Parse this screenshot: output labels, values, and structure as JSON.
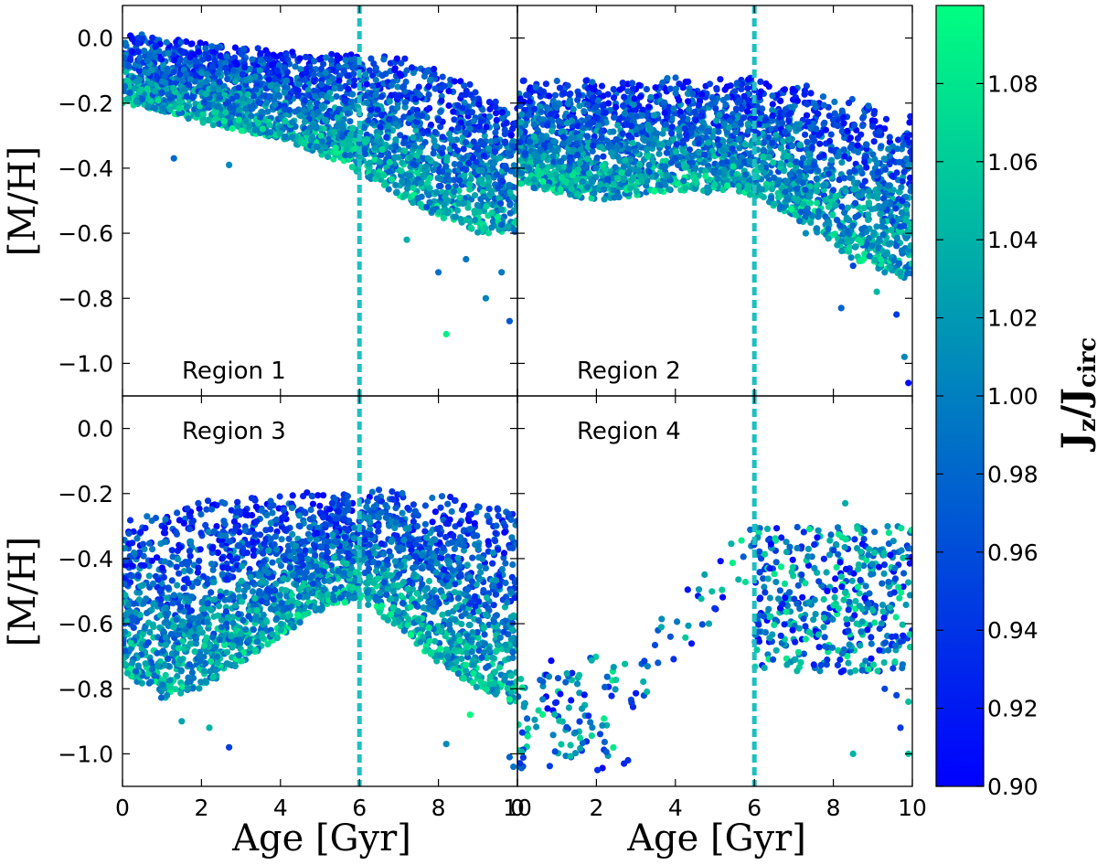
{
  "chart_data": {
    "type": "scatter",
    "layout": "2x2 grid of panels sharing axes",
    "xlabel": "Age [Gyr]",
    "ylabel": "[M/H]",
    "xlim": [
      0,
      10
    ],
    "ylim": [
      -1.1,
      0.1
    ],
    "xticks": [
      "0",
      "2",
      "4",
      "6",
      "8",
      "10"
    ],
    "yticks": [
      "0.0",
      "−0.2",
      "−0.4",
      "−0.6",
      "−0.8",
      "−1.0"
    ],
    "reference_line": {
      "x": 6,
      "style": "dashed",
      "color": "#1fbfbf"
    },
    "colorbar": {
      "label": "J_z/J_circ",
      "label_main": "J",
      "label_sub1": "z",
      "label_slash": "/J",
      "label_sub2": "circ",
      "min": 0.9,
      "max": 1.1,
      "ticks": [
        "0.90",
        "0.92",
        "0.94",
        "0.96",
        "0.98",
        "1.00",
        "1.02",
        "1.04",
        "1.06",
        "1.08"
      ],
      "color_low": "#0000ff",
      "color_high": "#00ff80"
    },
    "panels": [
      {
        "name": "Region 1",
        "description": "dense band; upper envelope ~0.0 at age 0 declining to ~-0.2 at age 10, spread widening with age, sparse tail down to ~-0.9",
        "upper": [
          [
            0,
            0.02
          ],
          [
            2,
            -0.01
          ],
          [
            4,
            -0.04
          ],
          [
            6,
            -0.05
          ],
          [
            7,
            -0.06
          ],
          [
            8,
            -0.08
          ],
          [
            9,
            -0.15
          ],
          [
            10,
            -0.2
          ]
        ],
        "lower": [
          [
            0,
            -0.2
          ],
          [
            2,
            -0.26
          ],
          [
            4,
            -0.31
          ],
          [
            5.5,
            -0.38
          ],
          [
            6.5,
            -0.45
          ],
          [
            8,
            -0.55
          ],
          [
            9,
            -0.6
          ],
          [
            10,
            -0.6
          ]
        ],
        "outliers": [
          [
            1.3,
            -0.37
          ],
          [
            2.7,
            -0.39
          ],
          [
            7.2,
            -0.62
          ],
          [
            8,
            -0.72
          ],
          [
            8.2,
            -0.91
          ],
          [
            9.2,
            -0.8
          ],
          [
            9.6,
            -0.72
          ],
          [
            9.8,
            -0.87
          ],
          [
            9.5,
            -0.55
          ],
          [
            7.7,
            -0.52
          ],
          [
            8.7,
            -0.68
          ]
        ]
      },
      {
        "name": "Region 2",
        "description": "dense band between ~-0.12 and ~-0.48 from age 0 to 6, then broadening to ~-0.7 at age 10 with tail to ~-1.05",
        "upper": [
          [
            0,
            -0.13
          ],
          [
            2,
            -0.12
          ],
          [
            4,
            -0.12
          ],
          [
            6,
            -0.12
          ],
          [
            7.5,
            -0.15
          ],
          [
            9,
            -0.2
          ],
          [
            10,
            -0.24
          ]
        ],
        "lower": [
          [
            0,
            -0.45
          ],
          [
            2,
            -0.5
          ],
          [
            4,
            -0.47
          ],
          [
            5.8,
            -0.48
          ],
          [
            7,
            -0.55
          ],
          [
            8.5,
            -0.68
          ],
          [
            10,
            -0.75
          ]
        ],
        "outliers": [
          [
            7.3,
            -0.6
          ],
          [
            8.5,
            -0.7
          ],
          [
            9.1,
            -0.78
          ],
          [
            9.6,
            -0.85
          ],
          [
            9.8,
            -0.98
          ],
          [
            9.9,
            -1.06
          ],
          [
            9.3,
            -0.72
          ],
          [
            8.2,
            -0.83
          ]
        ]
      },
      {
        "name": "Region 3",
        "description": "upper envelope ~-0.2 to -0.3, metal-poor tail reaching ~-0.9 at young ages, dense band throughout",
        "upper": [
          [
            0,
            -0.28
          ],
          [
            2,
            -0.22
          ],
          [
            4,
            -0.2
          ],
          [
            6,
            -0.19
          ],
          [
            7,
            -0.18
          ],
          [
            8,
            -0.2
          ],
          [
            10,
            -0.24
          ]
        ],
        "lower": [
          [
            0,
            -0.75
          ],
          [
            1,
            -0.83
          ],
          [
            2,
            -0.8
          ],
          [
            3,
            -0.72
          ],
          [
            4,
            -0.64
          ],
          [
            5,
            -0.56
          ],
          [
            6,
            -0.52
          ],
          [
            7,
            -0.62
          ],
          [
            8,
            -0.72
          ],
          [
            9,
            -0.8
          ],
          [
            10,
            -0.85
          ]
        ],
        "outliers": [
          [
            1.5,
            -0.9
          ],
          [
            2.7,
            -0.98
          ],
          [
            8.2,
            -0.97
          ],
          [
            8.8,
            -0.88
          ],
          [
            9.8,
            -1.01
          ],
          [
            9.9,
            -1.04
          ],
          [
            2.2,
            -0.92
          ]
        ]
      },
      {
        "name": "Region 4",
        "description": "sparse: a clump near age 0-2.5 at [M/H] -0.7 to -1.05, scattered points up to age 6, then dense cloud at ages 6-10 between -0.25 and -0.85",
        "clusters": [
          {
            "x": [
              0,
              2.5
            ],
            "y": [
              -1.05,
              -0.7
            ],
            "n": 110
          },
          {
            "x": [
              2.5,
              6
            ],
            "y": [
              -0.8,
              -0.35
            ],
            "n": 45
          },
          {
            "x": [
              6,
              10
            ],
            "y": [
              -0.75,
              -0.3
            ],
            "n": 450
          }
        ],
        "outliers": [
          [
            8.3,
            -0.23
          ],
          [
            8.5,
            -1.0
          ],
          [
            9.3,
            -0.8
          ],
          [
            9.6,
            -0.82
          ],
          [
            9.9,
            -0.84
          ],
          [
            9.7,
            -0.92
          ],
          [
            9.9,
            -1.0
          ],
          [
            2.7,
            -1.03
          ],
          [
            2.8,
            -1.02
          ]
        ]
      }
    ]
  }
}
